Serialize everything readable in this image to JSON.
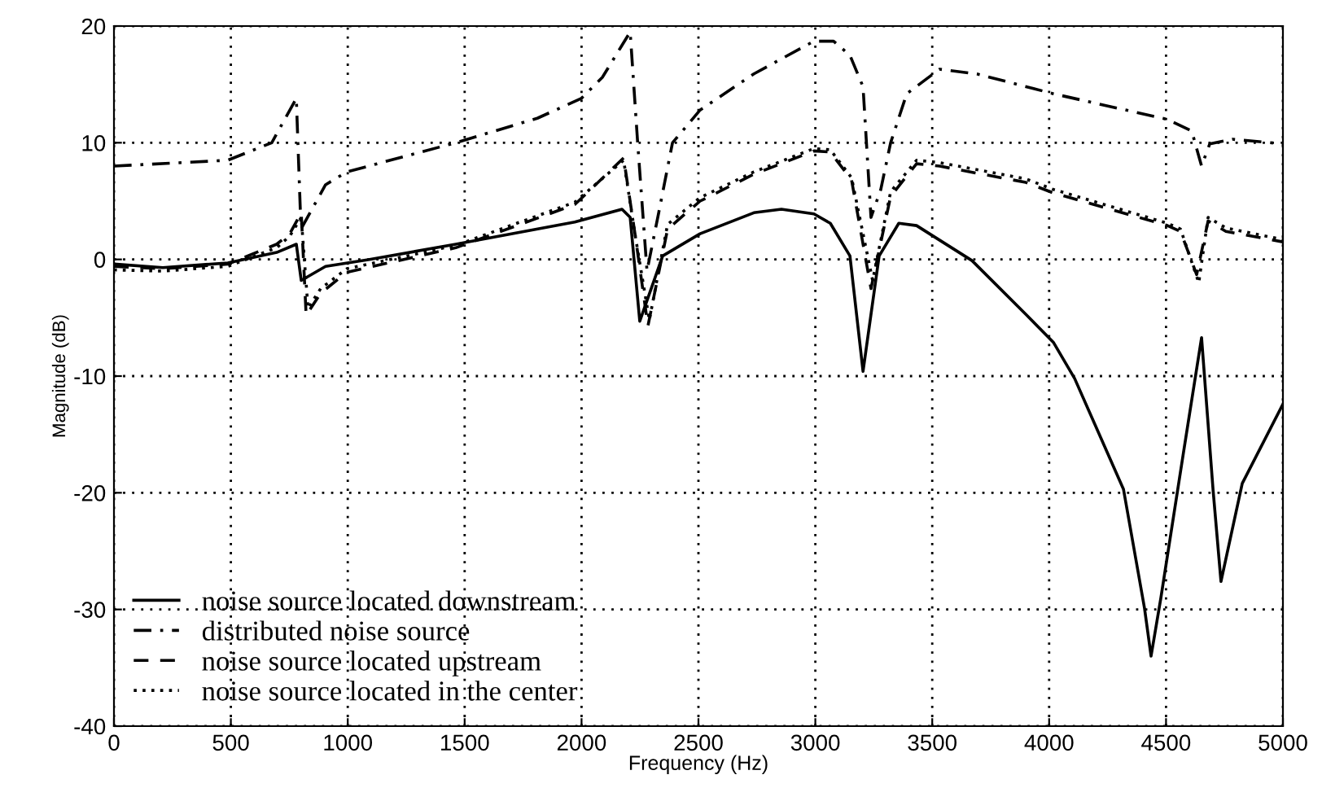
{
  "chart_data": {
    "type": "line",
    "xlabel": "Frequency (Hz)",
    "ylabel": "Magnitude (dB)",
    "xlim": [
      0,
      5000
    ],
    "ylim": [
      -40,
      20
    ],
    "xticks": [
      0,
      500,
      1000,
      1500,
      2000,
      2500,
      3000,
      3500,
      4000,
      4500,
      5000
    ],
    "yticks": [
      -40,
      -30,
      -20,
      -10,
      0,
      10,
      20
    ],
    "grid": true,
    "legend": "bottom left",
    "marker": "none",
    "series": [
      {
        "name": "noise source located downstream",
        "color": "#000000",
        "line_style": "solid",
        "x": [
          0,
          209,
          487,
          696,
          780,
          801,
          905,
          1093,
          1462,
          1971,
          2173,
          2208,
          2249,
          2347,
          2507,
          2737,
          2855,
          2994,
          3064,
          3148,
          3204,
          3273,
          3357,
          3433,
          3670,
          3900,
          4018,
          4109,
          4318,
          4408,
          4436,
          4478,
          4575,
          4652,
          4701,
          4735,
          4826,
          5000
        ],
        "values": [
          -0.4,
          -0.7,
          -0.3,
          0.6,
          1.3,
          -1.8,
          -0.6,
          0,
          1.3,
          3.2,
          4.3,
          3.6,
          -5.3,
          0.3,
          2.2,
          4.0,
          4.3,
          3.9,
          3.1,
          0.3,
          -9.6,
          0.3,
          3.1,
          2.9,
          -0.1,
          -4.7,
          -7.1,
          -10.2,
          -19.7,
          -29.9,
          -34.0,
          -29,
          -16.5,
          -6.7,
          -19.7,
          -27.6,
          -19.2,
          -12.4
        ]
      },
      {
        "name": "distributed noise source",
        "color": "#000000",
        "line_style": "dashdot",
        "x": [
          0,
          487,
          675,
          780,
          800,
          905,
          996,
          1462,
          1811,
          1999,
          2089,
          2208,
          2240,
          2280,
          2330,
          2389,
          2507,
          2737,
          2994,
          3078,
          3148,
          3204,
          3238,
          3280,
          3322,
          3391,
          3531,
          3691,
          4018,
          4506,
          4610,
          4652,
          4687,
          4784,
          5000
        ],
        "values": [
          8.0,
          8.5,
          10.0,
          13.8,
          2.6,
          6.4,
          7.5,
          10.0,
          12.1,
          13.8,
          15.6,
          19.5,
          10,
          -1.0,
          4,
          10,
          12.8,
          15.9,
          18.7,
          18.7,
          17.5,
          14.8,
          3.6,
          6,
          10,
          14.2,
          16.3,
          15.9,
          14.2,
          12.0,
          11.0,
          8.0,
          9.9,
          10.3,
          9.9
        ]
      },
      {
        "name": "noise source located upstream",
        "color": "#000000",
        "line_style": "dashed",
        "x": [
          0,
          209,
          487,
          696,
          752,
          801,
          822,
          884,
          996,
          1462,
          1971,
          2180,
          2230,
          2284,
          2368,
          2507,
          2737,
          2994,
          3064,
          3155,
          3238,
          3322,
          3433,
          3531,
          3900,
          4018,
          4506,
          4562,
          4631,
          4680,
          4756,
          5000
        ],
        "values": [
          -0.6,
          -0.8,
          -0.4,
          1.3,
          2.2,
          4.0,
          -4.8,
          -2.9,
          -1.1,
          1.0,
          4.7,
          8.7,
          2,
          -5.7,
          2.6,
          5.0,
          7.3,
          9.3,
          9.2,
          6.8,
          -2.5,
          5.4,
          8.2,
          8.0,
          6.6,
          5.7,
          2.9,
          2.4,
          -1.3,
          3.3,
          2.4,
          1.5
        ]
      },
      {
        "name": "noise source located in the center",
        "color": "#000000",
        "line_style": "dotted",
        "x": [
          0,
          209,
          487,
          696,
          752,
          801,
          830,
          884,
          996,
          1462,
          1971,
          2180,
          2230,
          2290,
          2368,
          2507,
          2737,
          2994,
          3064,
          3155,
          3245,
          3322,
          3433,
          3531,
          3900,
          4018,
          4506,
          4562,
          4640,
          4680,
          4756,
          5000
        ],
        "values": [
          -0.9,
          -1.0,
          -0.6,
          1.0,
          2.0,
          3.6,
          -4.2,
          -2.5,
          -0.8,
          1.2,
          4.9,
          8.5,
          2,
          -5.2,
          3.0,
          5.3,
          7.5,
          9.5,
          9.4,
          7.0,
          -1.8,
          5.8,
          8.5,
          8.3,
          6.9,
          6.0,
          3.1,
          2.6,
          -2.0,
          3.6,
          2.7,
          1.7
        ]
      }
    ]
  }
}
